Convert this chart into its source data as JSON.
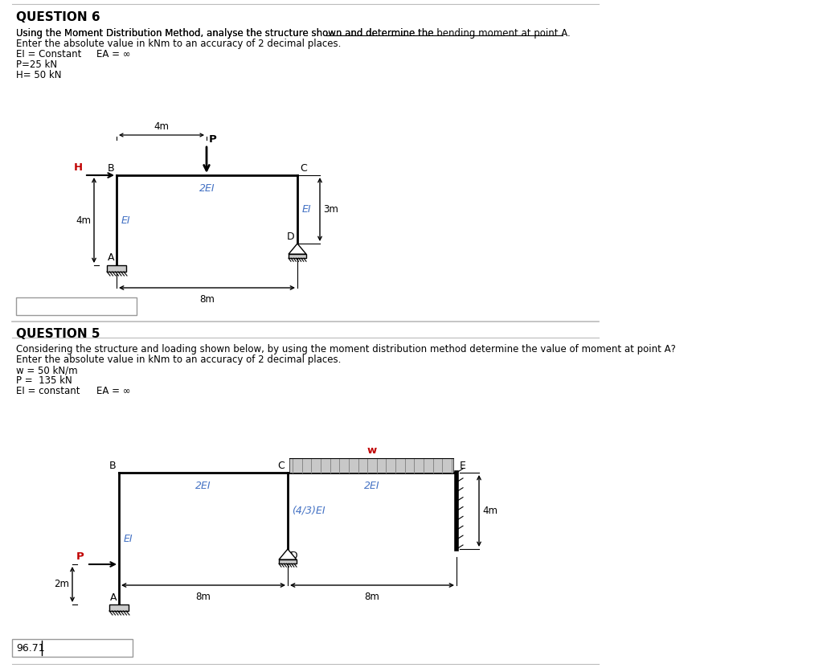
{
  "bg_color": "#ffffff",
  "fig_width": 10.24,
  "fig_height": 8.31,
  "q6_title": "QUESTION 6",
  "q5_title": "QUESTION 5",
  "answer_box_text": "96.71",
  "text_color": "#000000",
  "blue_color": "#4472c4",
  "red_color": "#c00000"
}
